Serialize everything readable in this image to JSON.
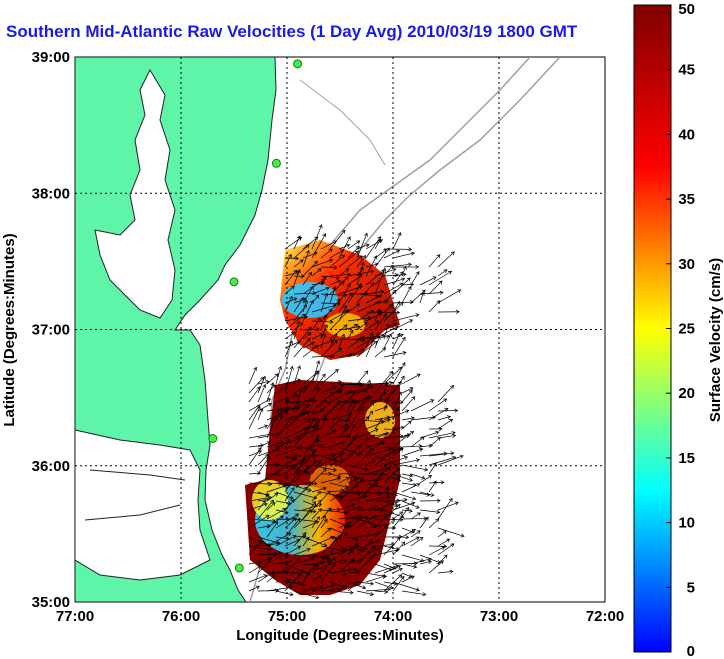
{
  "title": "Southern Mid-Atlantic Raw Velocities (1 Day Avg) 2010/03/19 1800 GMT",
  "colors": {
    "land": "#5ff5a8",
    "coast": "#222222",
    "bathymetry": "#a0a0a0",
    "title": "#1a1ae6",
    "station": "#44ee44"
  },
  "colorbar": {
    "min": 0,
    "max": 50,
    "label": "Surface Velocity (cm/s)",
    "ticks": [
      "0",
      "5",
      "10",
      "15",
      "20",
      "25",
      "30",
      "35",
      "40",
      "45",
      "50"
    ],
    "colormap": "jet"
  },
  "map": {
    "xlabel": "Longitude (Degrees:Minutes)",
    "ylabel": "Latitude (Degrees:Minutes)",
    "xticks": [
      "77:00",
      "76:00",
      "75:00",
      "74:00",
      "73:00",
      "72:00"
    ],
    "yticks": [
      "35:00",
      "36:00",
      "37:00",
      "38:00",
      "39:00"
    ],
    "lon_range": [
      -77,
      -72
    ],
    "lat_range": [
      35,
      39
    ],
    "grid": "dotted"
  },
  "stations": [
    {
      "lon": -74.9,
      "lat": 38.95
    },
    {
      "lon": -75.1,
      "lat": 38.22
    },
    {
      "lon": -75.5,
      "lat": 37.35
    },
    {
      "lon": -75.7,
      "lat": 36.2
    },
    {
      "lon": -75.45,
      "lat": 35.25
    }
  ]
}
